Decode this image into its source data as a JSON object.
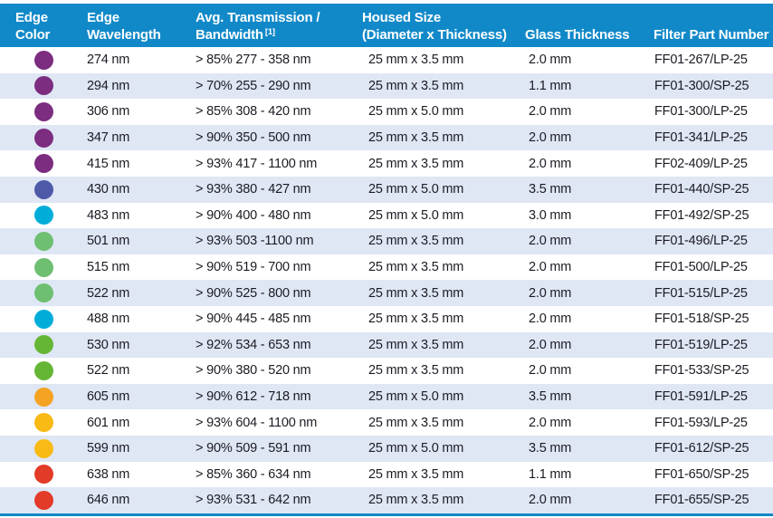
{
  "theme": {
    "header_bg": "#1189C9",
    "header_text": "#FFFFFF",
    "row_bg": "#FFFFFF",
    "row_alt_bg": "#DFE7F5",
    "text_color": "#1B1B24",
    "bottom_rule_color": "#1189C9"
  },
  "table": {
    "columns": [
      {
        "id": "edge-color",
        "line1": "Edge",
        "line2": "Color",
        "sup": ""
      },
      {
        "id": "edge-wavelength",
        "line1": "Edge",
        "line2": "Wavelength",
        "sup": ""
      },
      {
        "id": "transmission",
        "line1": "Avg. Transmission /",
        "line2": "Bandwidth",
        "sup": "[1]"
      },
      {
        "id": "housed-size",
        "line1": "Housed Size",
        "line2": "(Diameter x Thickness)",
        "sup": ""
      },
      {
        "id": "glass-thickness",
        "line1": "",
        "line2": "Glass Thickness",
        "sup": ""
      },
      {
        "id": "filter-part-number",
        "line1": "",
        "line2": "Filter Part Number",
        "sup": ""
      }
    ],
    "rows": [
      {
        "color_name": "purple",
        "dot_color": "#7C2D80",
        "wavelength": "274 nm",
        "transmission": "> 85% 277 - 358 nm",
        "housed_size": "25 mm x 3.5 mm",
        "glass_thickness": "2.0 mm",
        "part_number": "FF01-267/LP-25"
      },
      {
        "color_name": "purple",
        "dot_color": "#7C2D80",
        "wavelength": "294 nm",
        "transmission": "> 70% 255 - 290 nm",
        "housed_size": "25 mm x 3.5 mm",
        "glass_thickness": "1.1 mm",
        "part_number": "FF01-300/SP-25"
      },
      {
        "color_name": "purple",
        "dot_color": "#7C2D80",
        "wavelength": "306 nm",
        "transmission": "> 85% 308 - 420 nm",
        "housed_size": "25 mm x 5.0 mm",
        "glass_thickness": "2.0 mm",
        "part_number": "FF01-300/LP-25"
      },
      {
        "color_name": "purple",
        "dot_color": "#7C2D80",
        "wavelength": "347 nm",
        "transmission": "> 90% 350 - 500 nm",
        "housed_size": "25 mm x 3.5 mm",
        "glass_thickness": "2.0 mm",
        "part_number": "FF01-341/LP-25"
      },
      {
        "color_name": "purple",
        "dot_color": "#7C2D80",
        "wavelength": "415 nm",
        "transmission": "> 93% 417 - 1100 nm",
        "housed_size": "25 mm x 3.5 mm",
        "glass_thickness": "2.0 mm",
        "part_number": "FF02-409/LP-25"
      },
      {
        "color_name": "indigo",
        "dot_color": "#4E59A8",
        "wavelength": "430 nm",
        "transmission": "> 93% 380 - 427 nm",
        "housed_size": "25 mm x 5.0 mm",
        "glass_thickness": "3.5 mm",
        "part_number": "FF01-440/SP-25"
      },
      {
        "color_name": "cyan",
        "dot_color": "#00ADD8",
        "wavelength": "483 nm",
        "transmission": "> 90% 400 - 480 nm",
        "housed_size": "25 mm x 5.0 mm",
        "glass_thickness": "3.0 mm",
        "part_number": "FF01-492/SP-25"
      },
      {
        "color_name": "soft-green",
        "dot_color": "#6EBF71",
        "wavelength": "501 nm",
        "transmission": "> 93% 503 -1100 nm",
        "housed_size": "25 mm x 3.5 mm",
        "glass_thickness": "2.0 mm",
        "part_number": "FF01-496/LP-25"
      },
      {
        "color_name": "soft-green",
        "dot_color": "#6EBF71",
        "wavelength": "515 nm",
        "transmission": "> 90% 519 - 700 nm",
        "housed_size": "25 mm x 3.5 mm",
        "glass_thickness": "2.0 mm",
        "part_number": "FF01-500/LP-25"
      },
      {
        "color_name": "soft-green",
        "dot_color": "#6EBF71",
        "wavelength": "522 nm",
        "transmission": "> 90% 525 - 800 nm",
        "housed_size": "25 mm x 3.5 mm",
        "glass_thickness": "2.0 mm",
        "part_number": "FF01-515/LP-25"
      },
      {
        "color_name": "cyan",
        "dot_color": "#00ADD8",
        "wavelength": "488 nm",
        "transmission": "> 90% 445 - 485 nm",
        "housed_size": "25 mm x 3.5 mm",
        "glass_thickness": "2.0 mm",
        "part_number": "FF01-518/SP-25"
      },
      {
        "color_name": "green",
        "dot_color": "#66B636",
        "wavelength": "530 nm",
        "transmission": "> 92% 534 - 653 nm",
        "housed_size": "25 mm x 3.5 mm",
        "glass_thickness": "2.0 mm",
        "part_number": "FF01-519/LP-25"
      },
      {
        "color_name": "green",
        "dot_color": "#66B636",
        "wavelength": "522 nm",
        "transmission": "> 90% 380 - 520 nm",
        "housed_size": "25 mm x 3.5 mm",
        "glass_thickness": "2.0 mm",
        "part_number": "FF01-533/SP-25"
      },
      {
        "color_name": "orange",
        "dot_color": "#F5A323",
        "wavelength": "605 nm",
        "transmission": "> 90% 612 - 718 nm",
        "housed_size": "25 mm x 5.0 mm",
        "glass_thickness": "3.5 mm",
        "part_number": "FF01-591/LP-25"
      },
      {
        "color_name": "gold",
        "dot_color": "#F9BA15",
        "wavelength": "601 nm",
        "transmission": "> 93% 604 - 1100 nm",
        "housed_size": "25 mm x 3.5 mm",
        "glass_thickness": "2.0 mm",
        "part_number": "FF01-593/LP-25"
      },
      {
        "color_name": "gold",
        "dot_color": "#F9BA15",
        "wavelength": "599 nm",
        "transmission": "> 90% 509 - 591 nm",
        "housed_size": "25 mm x 5.0 mm",
        "glass_thickness": "3.5 mm",
        "part_number": "FF01-612/SP-25"
      },
      {
        "color_name": "red",
        "dot_color": "#E23B28",
        "wavelength": "638 nm",
        "transmission": "> 85% 360 - 634 nm",
        "housed_size": "25 mm x 3.5 mm",
        "glass_thickness": "1.1 mm",
        "part_number": "FF01-650/SP-25"
      },
      {
        "color_name": "red",
        "dot_color": "#E23B28",
        "wavelength": "646 nm",
        "transmission": "> 93% 531 - 642 nm",
        "housed_size": "25 mm x 3.5 mm",
        "glass_thickness": "2.0 mm",
        "part_number": "FF01-655/SP-25"
      }
    ]
  }
}
